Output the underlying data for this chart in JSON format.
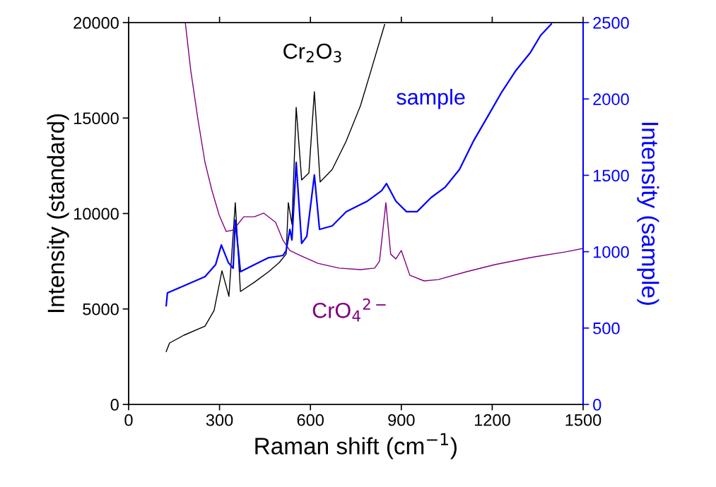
{
  "chart_data": {
    "type": "line",
    "xlabel": "Raman shift (cm$^{−1}$)",
    "ylabel": "Intensity (standard)",
    "y2label": "Intensity (sample)",
    "xlim": [
      0,
      1500
    ],
    "xticks": [
      0,
      300,
      600,
      900,
      1200,
      1500
    ],
    "ylim": [
      0,
      20000
    ],
    "yticks": [
      0,
      5000,
      10000,
      15000,
      20000
    ],
    "y2lim": [
      0,
      2500
    ],
    "y2ticks": [
      0,
      500,
      1000,
      1500,
      2000,
      2500
    ],
    "series": [
      {
        "name": "Cr$_{2}$O$_{3}$",
        "color": "#000000",
        "x": [
          124,
          135,
          182,
          252,
          282,
          308,
          331,
          352,
          369,
          415,
          462,
          497,
          520,
          527,
          539,
          553,
          571,
          595,
          613,
          632,
          672,
          718,
          765,
          800,
          845
        ],
        "values": [
          2770,
          3216,
          3623,
          4100,
          4920,
          7000,
          5660,
          10570,
          5915,
          6400,
          6950,
          7430,
          7880,
          10570,
          9430,
          15560,
          11760,
          12130,
          16380,
          11650,
          12310,
          13790,
          15640,
          17490,
          19900
        ]
      },
      {
        "name": "CrO$_{4}$$^{2−}$",
        "color": "#800080",
        "x": [
          187,
          205,
          229,
          252,
          275,
          299,
          322,
          345,
          380,
          415,
          446,
          485,
          509,
          532,
          567,
          625,
          695,
          765,
          812,
          828,
          849,
          865,
          882,
          900,
          928,
          975,
          1022,
          1115,
          1208,
          1325,
          1442,
          1500
        ],
        "values": [
          20000,
          17490,
          14900,
          12680,
          11200,
          9910,
          9060,
          9130,
          9830,
          9830,
          10020,
          9540,
          8610,
          8060,
          7800,
          7390,
          7140,
          7060,
          7140,
          7500,
          10570,
          7870,
          7620,
          8060,
          6770,
          6470,
          6540,
          6950,
          7320,
          7690,
          7990,
          8170
        ]
      },
      {
        "name": "sample",
        "color": "#0000ff",
        "axis": "y2",
        "x": [
          124,
          128,
          182,
          252,
          287,
          306,
          329,
          345,
          352,
          369,
          415,
          462,
          509,
          520,
          532,
          539,
          553,
          571,
          588,
          613,
          630,
          672,
          718,
          788,
          835,
          851,
          882,
          917,
          952,
          998,
          1045,
          1092,
          1138,
          1185,
          1232,
          1278,
          1325,
          1360,
          1395
        ],
        "values": [
          647,
          730,
          776,
          836,
          915,
          1044,
          929,
          892,
          1206,
          869,
          915,
          961,
          975,
          1007,
          1146,
          1077,
          1585,
          1054,
          1100,
          1502,
          1146,
          1169,
          1262,
          1331,
          1400,
          1446,
          1331,
          1262,
          1262,
          1354,
          1423,
          1539,
          1724,
          1885,
          2047,
          2186,
          2301,
          2417,
          2490
        ]
      }
    ]
  }
}
